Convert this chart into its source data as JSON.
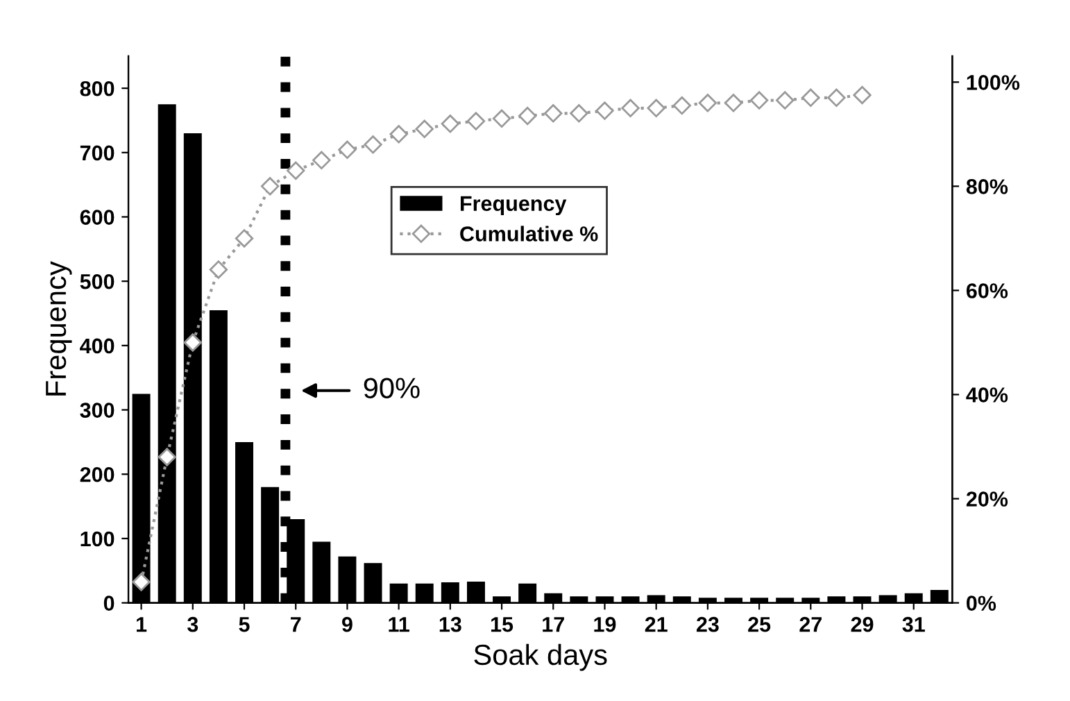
{
  "chart_data": {
    "type": "bar",
    "xlabel": "Soak days",
    "ylabel": "Frequency",
    "x": [
      1,
      2,
      3,
      4,
      5,
      6,
      7,
      8,
      9,
      10,
      11,
      12,
      13,
      14,
      15,
      16,
      17,
      18,
      19,
      20,
      21,
      22,
      23,
      24,
      25,
      26,
      27,
      28,
      29,
      30,
      31,
      32
    ],
    "xlim": [
      0.5,
      32.5
    ],
    "xticks": [
      1,
      3,
      5,
      7,
      9,
      11,
      13,
      15,
      17,
      19,
      21,
      23,
      25,
      27,
      29,
      31
    ],
    "ylim": [
      0,
      850
    ],
    "yticks": [
      0,
      100,
      200,
      300,
      400,
      500,
      600,
      700,
      800
    ],
    "y2lim": [
      0,
      105
    ],
    "y2ticks": [
      {
        "value": 0,
        "label": "0%"
      },
      {
        "value": 20,
        "label": "20%"
      },
      {
        "value": 40,
        "label": "40%"
      },
      {
        "value": 60,
        "label": "60%"
      },
      {
        "value": 80,
        "label": "80%"
      },
      {
        "value": 100,
        "label": "100%"
      }
    ],
    "series": [
      {
        "name": "Frequency",
        "color": "#000000",
        "values": [
          325,
          775,
          730,
          455,
          250,
          180,
          130,
          95,
          72,
          62,
          30,
          30,
          32,
          33,
          10,
          30,
          15,
          10,
          10,
          10,
          12,
          10,
          8,
          8,
          8,
          8,
          8,
          10,
          10,
          12,
          15,
          20
        ]
      },
      {
        "name": "Cumulative %",
        "type": "line",
        "axis": "y2",
        "color": "#999999",
        "marker": "diamond",
        "line_style": "dotted",
        "values": [
          4,
          28,
          50,
          64,
          70,
          80,
          83,
          85,
          87,
          88,
          90,
          91,
          92,
          92.5,
          93,
          93.5,
          94,
          94,
          94.5,
          95,
          95,
          95.5,
          96,
          96,
          96.5,
          96.5,
          97,
          97,
          97.5,
          null,
          null,
          null
        ]
      }
    ],
    "ref_lines": [
      {
        "axis": "x",
        "value": 6.6,
        "color": "#000000",
        "line_style": "dotted"
      }
    ],
    "annotations": [
      {
        "text": "90%",
        "x": 6.6,
        "y": 330
      }
    ],
    "legend": "top",
    "grid": false
  }
}
